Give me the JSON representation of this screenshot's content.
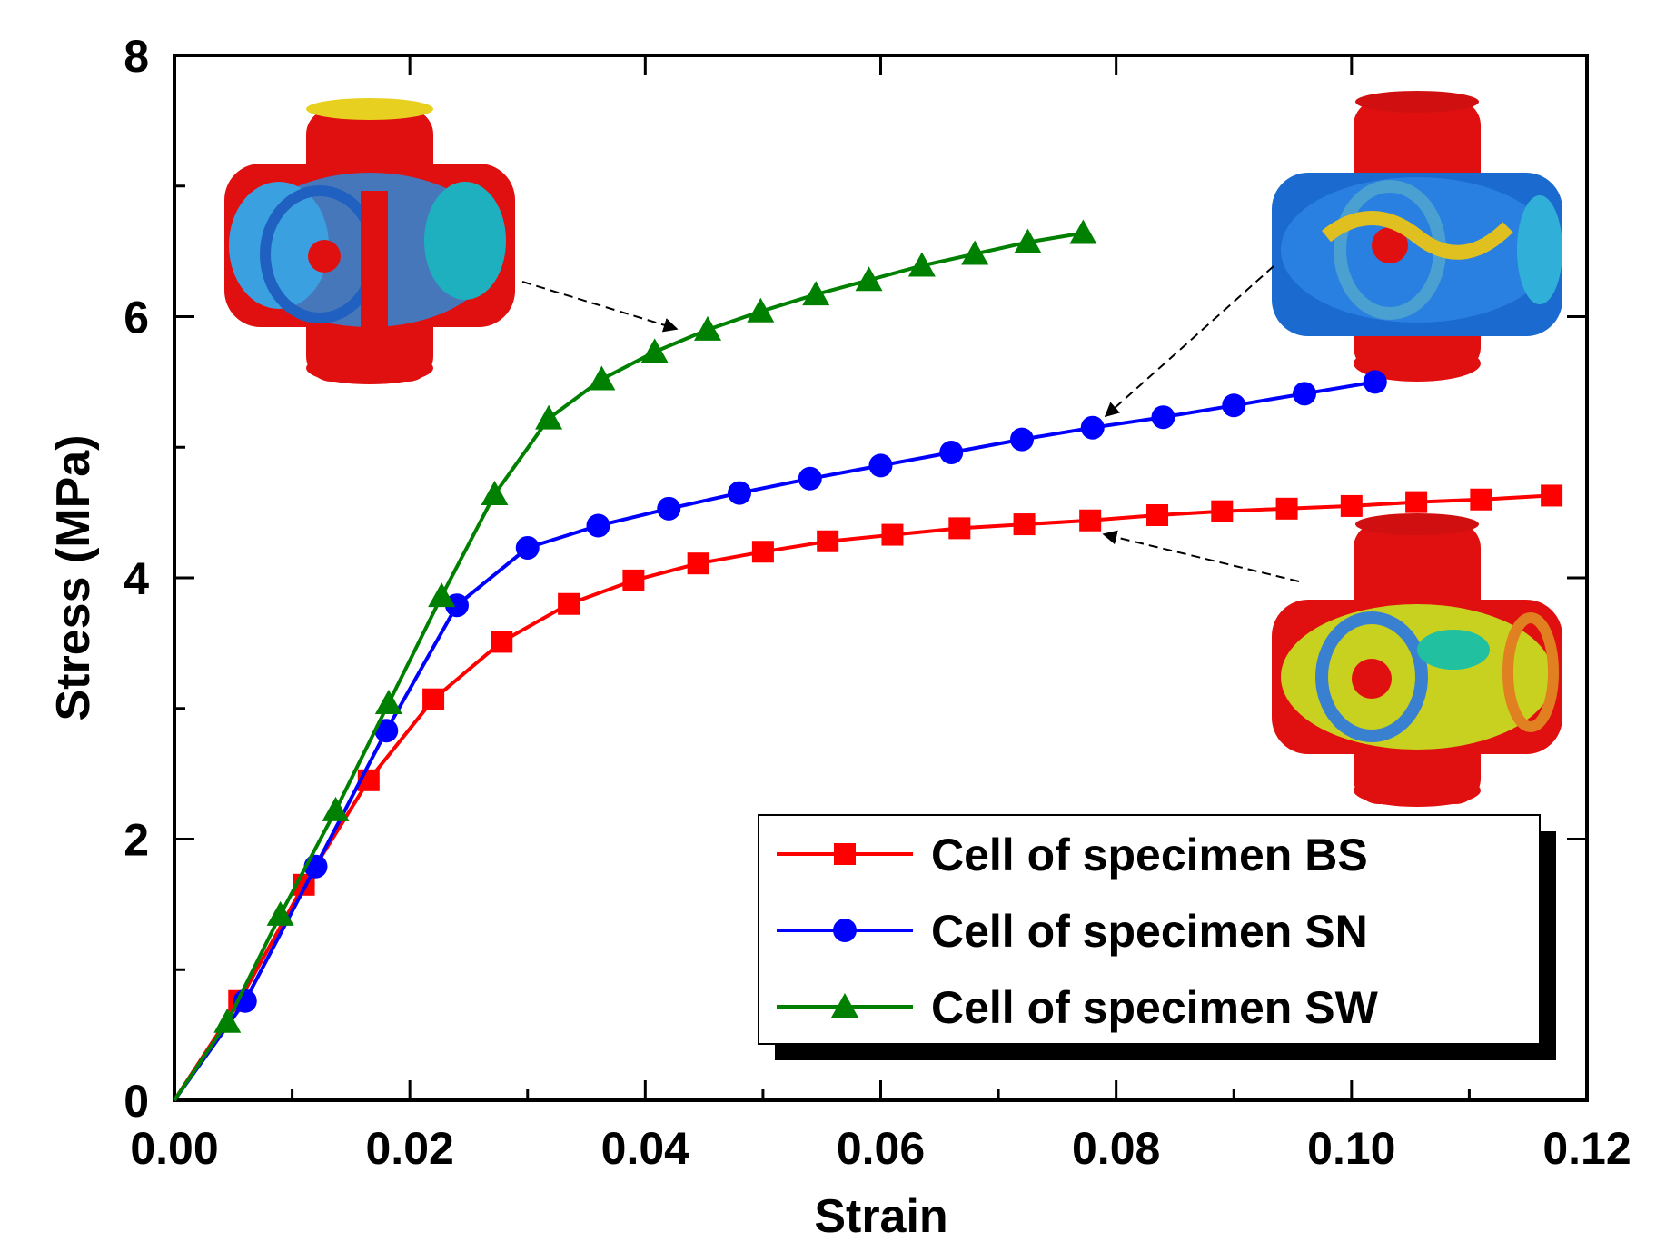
{
  "chart_data": {
    "type": "line",
    "title": "",
    "xlabel": "Strain",
    "ylabel": "Stress (MPa)",
    "xlim": [
      0,
      0.12
    ],
    "ylim": [
      0,
      8
    ],
    "xticks": [
      0,
      0.02,
      0.04,
      0.06,
      0.08,
      0.1,
      0.12
    ],
    "xtick_labels": [
      "0.00",
      "0.02",
      "0.04",
      "0.06",
      "0.08",
      "0.10",
      "0.12"
    ],
    "yticks": [
      0,
      2,
      4,
      6,
      8
    ],
    "ytick_labels": [
      "0",
      "2",
      "4",
      "6",
      "8"
    ],
    "grid": false,
    "legend_position": "bottom-right",
    "series": [
      {
        "name": "Cell of specimen BS",
        "color": "#ff0000",
        "marker": "square",
        "x": [
          0,
          0.0055,
          0.011,
          0.0165,
          0.022,
          0.0278,
          0.0335,
          0.039,
          0.0445,
          0.05,
          0.0555,
          0.061,
          0.0667,
          0.0722,
          0.0778,
          0.0835,
          0.089,
          0.0945,
          0.1,
          0.1055,
          0.111,
          0.117
        ],
        "y": [
          0,
          0.76,
          1.65,
          2.45,
          3.07,
          3.51,
          3.8,
          3.98,
          4.11,
          4.2,
          4.28,
          4.33,
          4.38,
          4.41,
          4.44,
          4.48,
          4.51,
          4.53,
          4.55,
          4.58,
          4.6,
          4.63
        ]
      },
      {
        "name": "Cell of specimen SN",
        "color": "#0000ff",
        "marker": "circle",
        "x": [
          0,
          0.006,
          0.012,
          0.018,
          0.024,
          0.03,
          0.036,
          0.042,
          0.048,
          0.054,
          0.06,
          0.066,
          0.072,
          0.078,
          0.084,
          0.09,
          0.096,
          0.102
        ],
        "y": [
          0,
          0.76,
          1.79,
          2.83,
          3.79,
          4.23,
          4.4,
          4.53,
          4.65,
          4.76,
          4.86,
          4.96,
          5.06,
          5.15,
          5.23,
          5.32,
          5.41,
          5.5
        ]
      },
      {
        "name": "Cell of specimen SW",
        "color": "#008000",
        "marker": "triangle",
        "x": [
          0,
          0.0045,
          0.009,
          0.0137,
          0.0182,
          0.0227,
          0.0272,
          0.0318,
          0.0363,
          0.0408,
          0.0453,
          0.0498,
          0.0545,
          0.059,
          0.0635,
          0.068,
          0.0725,
          0.0772
        ],
        "y": [
          0,
          0.6,
          1.42,
          2.22,
          3.04,
          3.86,
          4.64,
          5.22,
          5.52,
          5.73,
          5.9,
          6.04,
          6.17,
          6.28,
          6.39,
          6.48,
          6.57,
          6.64
        ]
      }
    ]
  },
  "insets": [
    {
      "name": "stress-contour-inset-sw",
      "description": "unit cell stress contour"
    },
    {
      "name": "stress-contour-inset-sn",
      "description": "unit cell stress contour"
    },
    {
      "name": "stress-contour-inset-bs",
      "description": "unit cell stress contour"
    }
  ]
}
